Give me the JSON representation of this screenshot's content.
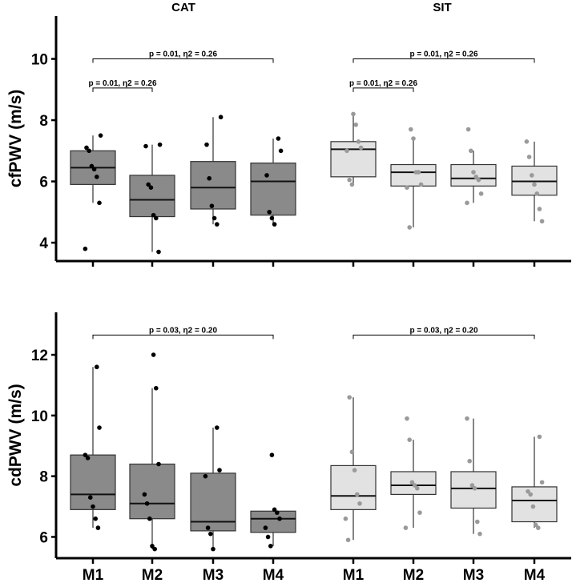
{
  "chart_data": {
    "type": "boxplot",
    "categories": [
      "M1",
      "M2",
      "M3",
      "M4"
    ],
    "panels": [
      {
        "id": "cfpwv-cat",
        "group": "CAT",
        "ylabel": "cfPWV (m/s)",
        "ylim": [
          3.4,
          11.4
        ],
        "yticks": [
          4,
          6,
          8,
          10
        ],
        "ytick_labels": [
          "4",
          "6",
          "8",
          "10"
        ],
        "style": "dark",
        "boxes": [
          {
            "cat": "M1",
            "q1": 5.9,
            "median": 6.45,
            "q3": 7.0,
            "wlo": 5.3,
            "whi": 7.5,
            "points": [
              3.8,
              5.3,
              6.15,
              6.4,
              6.5,
              7.0,
              7.1,
              7.5
            ]
          },
          {
            "cat": "M2",
            "q1": 4.85,
            "median": 5.4,
            "q3": 6.2,
            "wlo": 3.7,
            "whi": 7.2,
            "points": [
              3.7,
              4.8,
              4.9,
              5.8,
              5.9,
              7.15,
              7.2
            ]
          },
          {
            "cat": "M3",
            "q1": 5.1,
            "median": 5.8,
            "q3": 6.65,
            "wlo": 4.6,
            "whi": 8.1,
            "points": [
              4.6,
              4.8,
              5.2,
              6.1,
              7.2,
              8.1
            ]
          },
          {
            "cat": "M4",
            "q1": 4.9,
            "median": 6.0,
            "q3": 6.6,
            "wlo": 4.6,
            "whi": 7.4,
            "points": [
              4.6,
              4.8,
              5.0,
              6.2,
              7.0,
              7.4
            ]
          }
        ],
        "annotations": [
          {
            "from": "M1",
            "to": "M4",
            "y": 10.0,
            "text": "p = 0.01, η2 = 0.26"
          },
          {
            "from": "M1",
            "to": "M2",
            "y": 9.05,
            "text": "p = 0.01, η2 = 0.26"
          }
        ]
      },
      {
        "id": "cfpwv-sit",
        "group": "SIT",
        "ylabel": "",
        "ylim": [
          3.4,
          11.4
        ],
        "yticks": [
          4,
          6,
          8,
          10
        ],
        "ytick_labels": [],
        "style": "light",
        "boxes": [
          {
            "cat": "M1",
            "q1": 6.15,
            "median": 7.05,
            "q3": 7.3,
            "wlo": 5.9,
            "whi": 8.2,
            "points": [
              5.9,
              6.05,
              7.0,
              7.1,
              7.3,
              7.85,
              8.2
            ]
          },
          {
            "cat": "M2",
            "q1": 5.85,
            "median": 6.3,
            "q3": 6.55,
            "wlo": 4.5,
            "whi": 7.4,
            "points": [
              4.5,
              5.8,
              5.9,
              6.3,
              6.3,
              7.4,
              7.7
            ]
          },
          {
            "cat": "M3",
            "q1": 5.85,
            "median": 6.1,
            "q3": 6.55,
            "wlo": 5.3,
            "whi": 7.0,
            "points": [
              5.3,
              5.6,
              6.05,
              6.15,
              6.3,
              7.0,
              7.7
            ]
          },
          {
            "cat": "M4",
            "q1": 5.55,
            "median": 6.0,
            "q3": 6.5,
            "wlo": 4.7,
            "whi": 7.3,
            "points": [
              4.7,
              5.1,
              5.6,
              5.9,
              6.2,
              6.8,
              7.3
            ]
          }
        ],
        "annotations": [
          {
            "from": "M1",
            "to": "M4",
            "y": 10.0,
            "text": "p = 0.01, η2 = 0.26"
          },
          {
            "from": "M1",
            "to": "M2",
            "y": 9.05,
            "text": "p = 0.01, η2 = 0.26"
          }
        ]
      },
      {
        "id": "cdpwv-cat",
        "group": "CAT",
        "ylabel": "cdPWV (m/s)",
        "ylim": [
          5.3,
          13.4
        ],
        "yticks": [
          6,
          8,
          10,
          12
        ],
        "ytick_labels": [
          "6",
          "8",
          "10",
          "12"
        ],
        "style": "dark",
        "boxes": [
          {
            "cat": "M1",
            "q1": 6.9,
            "median": 7.4,
            "q3": 8.7,
            "wlo": 6.3,
            "whi": 11.6,
            "points": [
              6.3,
              6.6,
              7.0,
              7.3,
              8.6,
              8.7,
              9.6,
              11.6
            ]
          },
          {
            "cat": "M2",
            "q1": 6.6,
            "median": 7.1,
            "q3": 8.4,
            "wlo": 5.6,
            "whi": 10.9,
            "points": [
              5.6,
              5.7,
              6.6,
              7.1,
              7.4,
              8.4,
              10.9,
              12.0
            ]
          },
          {
            "cat": "M3",
            "q1": 6.2,
            "median": 6.5,
            "q3": 8.1,
            "wlo": 5.6,
            "whi": 9.6,
            "points": [
              5.6,
              6.1,
              6.3,
              8.0,
              8.2,
              9.6
            ]
          },
          {
            "cat": "M4",
            "q1": 6.15,
            "median": 6.6,
            "q3": 6.85,
            "wlo": 5.7,
            "whi": 6.9,
            "points": [
              5.7,
              6.0,
              6.3,
              6.6,
              6.8,
              6.9,
              8.7
            ]
          }
        ],
        "annotations": [
          {
            "from": "M1",
            "to": "M4",
            "y": 12.65,
            "text": "p = 0.03, η2 = 0.20"
          }
        ]
      },
      {
        "id": "cdpwv-sit",
        "group": "SIT",
        "ylabel": "",
        "ylim": [
          5.3,
          13.4
        ],
        "yticks": [
          6,
          8,
          10,
          12
        ],
        "ytick_labels": [],
        "style": "light",
        "boxes": [
          {
            "cat": "M1",
            "q1": 6.9,
            "median": 7.35,
            "q3": 8.35,
            "wlo": 5.9,
            "whi": 10.6,
            "points": [
              5.9,
              6.6,
              7.1,
              7.4,
              8.2,
              8.8,
              10.6
            ]
          },
          {
            "cat": "M2",
            "q1": 7.4,
            "median": 7.7,
            "q3": 8.15,
            "wlo": 6.3,
            "whi": 9.2,
            "points": [
              6.3,
              6.8,
              7.6,
              7.7,
              7.8,
              9.2,
              9.9
            ]
          },
          {
            "cat": "M3",
            "q1": 6.95,
            "median": 7.6,
            "q3": 8.15,
            "wlo": 6.1,
            "whi": 9.9,
            "points": [
              6.1,
              6.5,
              7.6,
              7.7,
              8.5,
              9.9
            ]
          },
          {
            "cat": "M4",
            "q1": 6.5,
            "median": 7.2,
            "q3": 7.65,
            "wlo": 6.3,
            "whi": 9.3,
            "points": [
              6.3,
              6.4,
              7.0,
              7.4,
              7.5,
              7.8,
              9.3
            ]
          }
        ],
        "annotations": [
          {
            "from": "M1",
            "to": "M4",
            "y": 12.65,
            "text": "p = 0.03, η2 = 0.20"
          }
        ]
      }
    ],
    "column_titles": [
      "CAT",
      "SIT"
    ],
    "colors": {
      "dark_box": "#8a8a8a",
      "light_box": "#e2e2e2",
      "dark_point": "#000000",
      "light_point": "#9a9a9a",
      "axis": "#000000"
    }
  }
}
